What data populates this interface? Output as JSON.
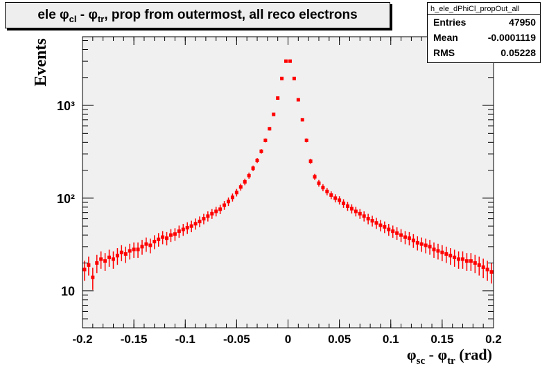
{
  "title": "ele φcl - φtr, prop from outermost, all reco electrons",
  "title_parts": {
    "a": "ele φ",
    "a_sub": "cl",
    "b": " - φ",
    "b_sub": "tr",
    "c": ", prop from outermost, all reco electrons"
  },
  "stats": {
    "name": "h_ele_dPhiCl_propOut_all",
    "entries_label": "Entries",
    "entries": "47950",
    "mean_label": "Mean",
    "mean": "-0.0001119",
    "rms_label": "RMS",
    "rms": "0.05228"
  },
  "chart_data": {
    "type": "scatter",
    "title": "ele φcl - φtr, prop from outermost, all reco electrons",
    "xlabel": "φsc - φtr (rad)",
    "ylabel": "Events",
    "xlim": [
      -0.2,
      0.2
    ],
    "ylim": [
      4,
      5500
    ],
    "yscale": "log",
    "x_ticks": [
      "-0.2",
      "-0.15",
      "-0.1",
      "-0.05",
      "0",
      "0.05",
      "0.1",
      "0.15",
      "0.2"
    ],
    "y_ticks": [
      "10",
      "10²",
      "10³"
    ],
    "series_color": "#ff0000",
    "frame_fill": "#f0f0f0",
    "x": [
      -0.198,
      -0.194,
      -0.19,
      -0.186,
      -0.182,
      -0.178,
      -0.174,
      -0.17,
      -0.166,
      -0.162,
      -0.158,
      -0.154,
      -0.15,
      -0.146,
      -0.142,
      -0.138,
      -0.134,
      -0.13,
      -0.126,
      -0.122,
      -0.118,
      -0.114,
      -0.11,
      -0.106,
      -0.102,
      -0.098,
      -0.094,
      -0.09,
      -0.086,
      -0.082,
      -0.078,
      -0.074,
      -0.07,
      -0.066,
      -0.062,
      -0.058,
      -0.054,
      -0.05,
      -0.046,
      -0.042,
      -0.038,
      -0.034,
      -0.03,
      -0.026,
      -0.022,
      -0.018,
      -0.014,
      -0.01,
      -0.006,
      -0.002,
      0.002,
      0.006,
      0.01,
      0.014,
      0.018,
      0.022,
      0.026,
      0.03,
      0.034,
      0.038,
      0.042,
      0.046,
      0.05,
      0.054,
      0.058,
      0.062,
      0.066,
      0.07,
      0.074,
      0.078,
      0.082,
      0.086,
      0.09,
      0.094,
      0.098,
      0.102,
      0.106,
      0.11,
      0.114,
      0.118,
      0.122,
      0.126,
      0.13,
      0.134,
      0.138,
      0.142,
      0.146,
      0.15,
      0.154,
      0.158,
      0.162,
      0.166,
      0.17,
      0.174,
      0.178,
      0.182,
      0.186,
      0.19,
      0.194,
      0.198
    ],
    "y": [
      17,
      19,
      14,
      20,
      22,
      21,
      23,
      22,
      24,
      26,
      25,
      27,
      28,
      28,
      30,
      32,
      31,
      34,
      36,
      38,
      37,
      40,
      41,
      44,
      46,
      48,
      50,
      53,
      56,
      60,
      64,
      68,
      72,
      76,
      84,
      92,
      102,
      115,
      132,
      150,
      175,
      210,
      255,
      320,
      420,
      560,
      800,
      1200,
      1950,
      3000,
      3000,
      1950,
      1150,
      700,
      420,
      250,
      170,
      145,
      130,
      118,
      108,
      100,
      95,
      88,
      82,
      77,
      72,
      68,
      64,
      60,
      57,
      54,
      51,
      49,
      46,
      44,
      42,
      40,
      38,
      37,
      35,
      33,
      32,
      31,
      30,
      28,
      27,
      26,
      25,
      24,
      23,
      22,
      22,
      21,
      21,
      20,
      19,
      18,
      17,
      16
    ],
    "errors_relative": "sqrt(N)"
  }
}
